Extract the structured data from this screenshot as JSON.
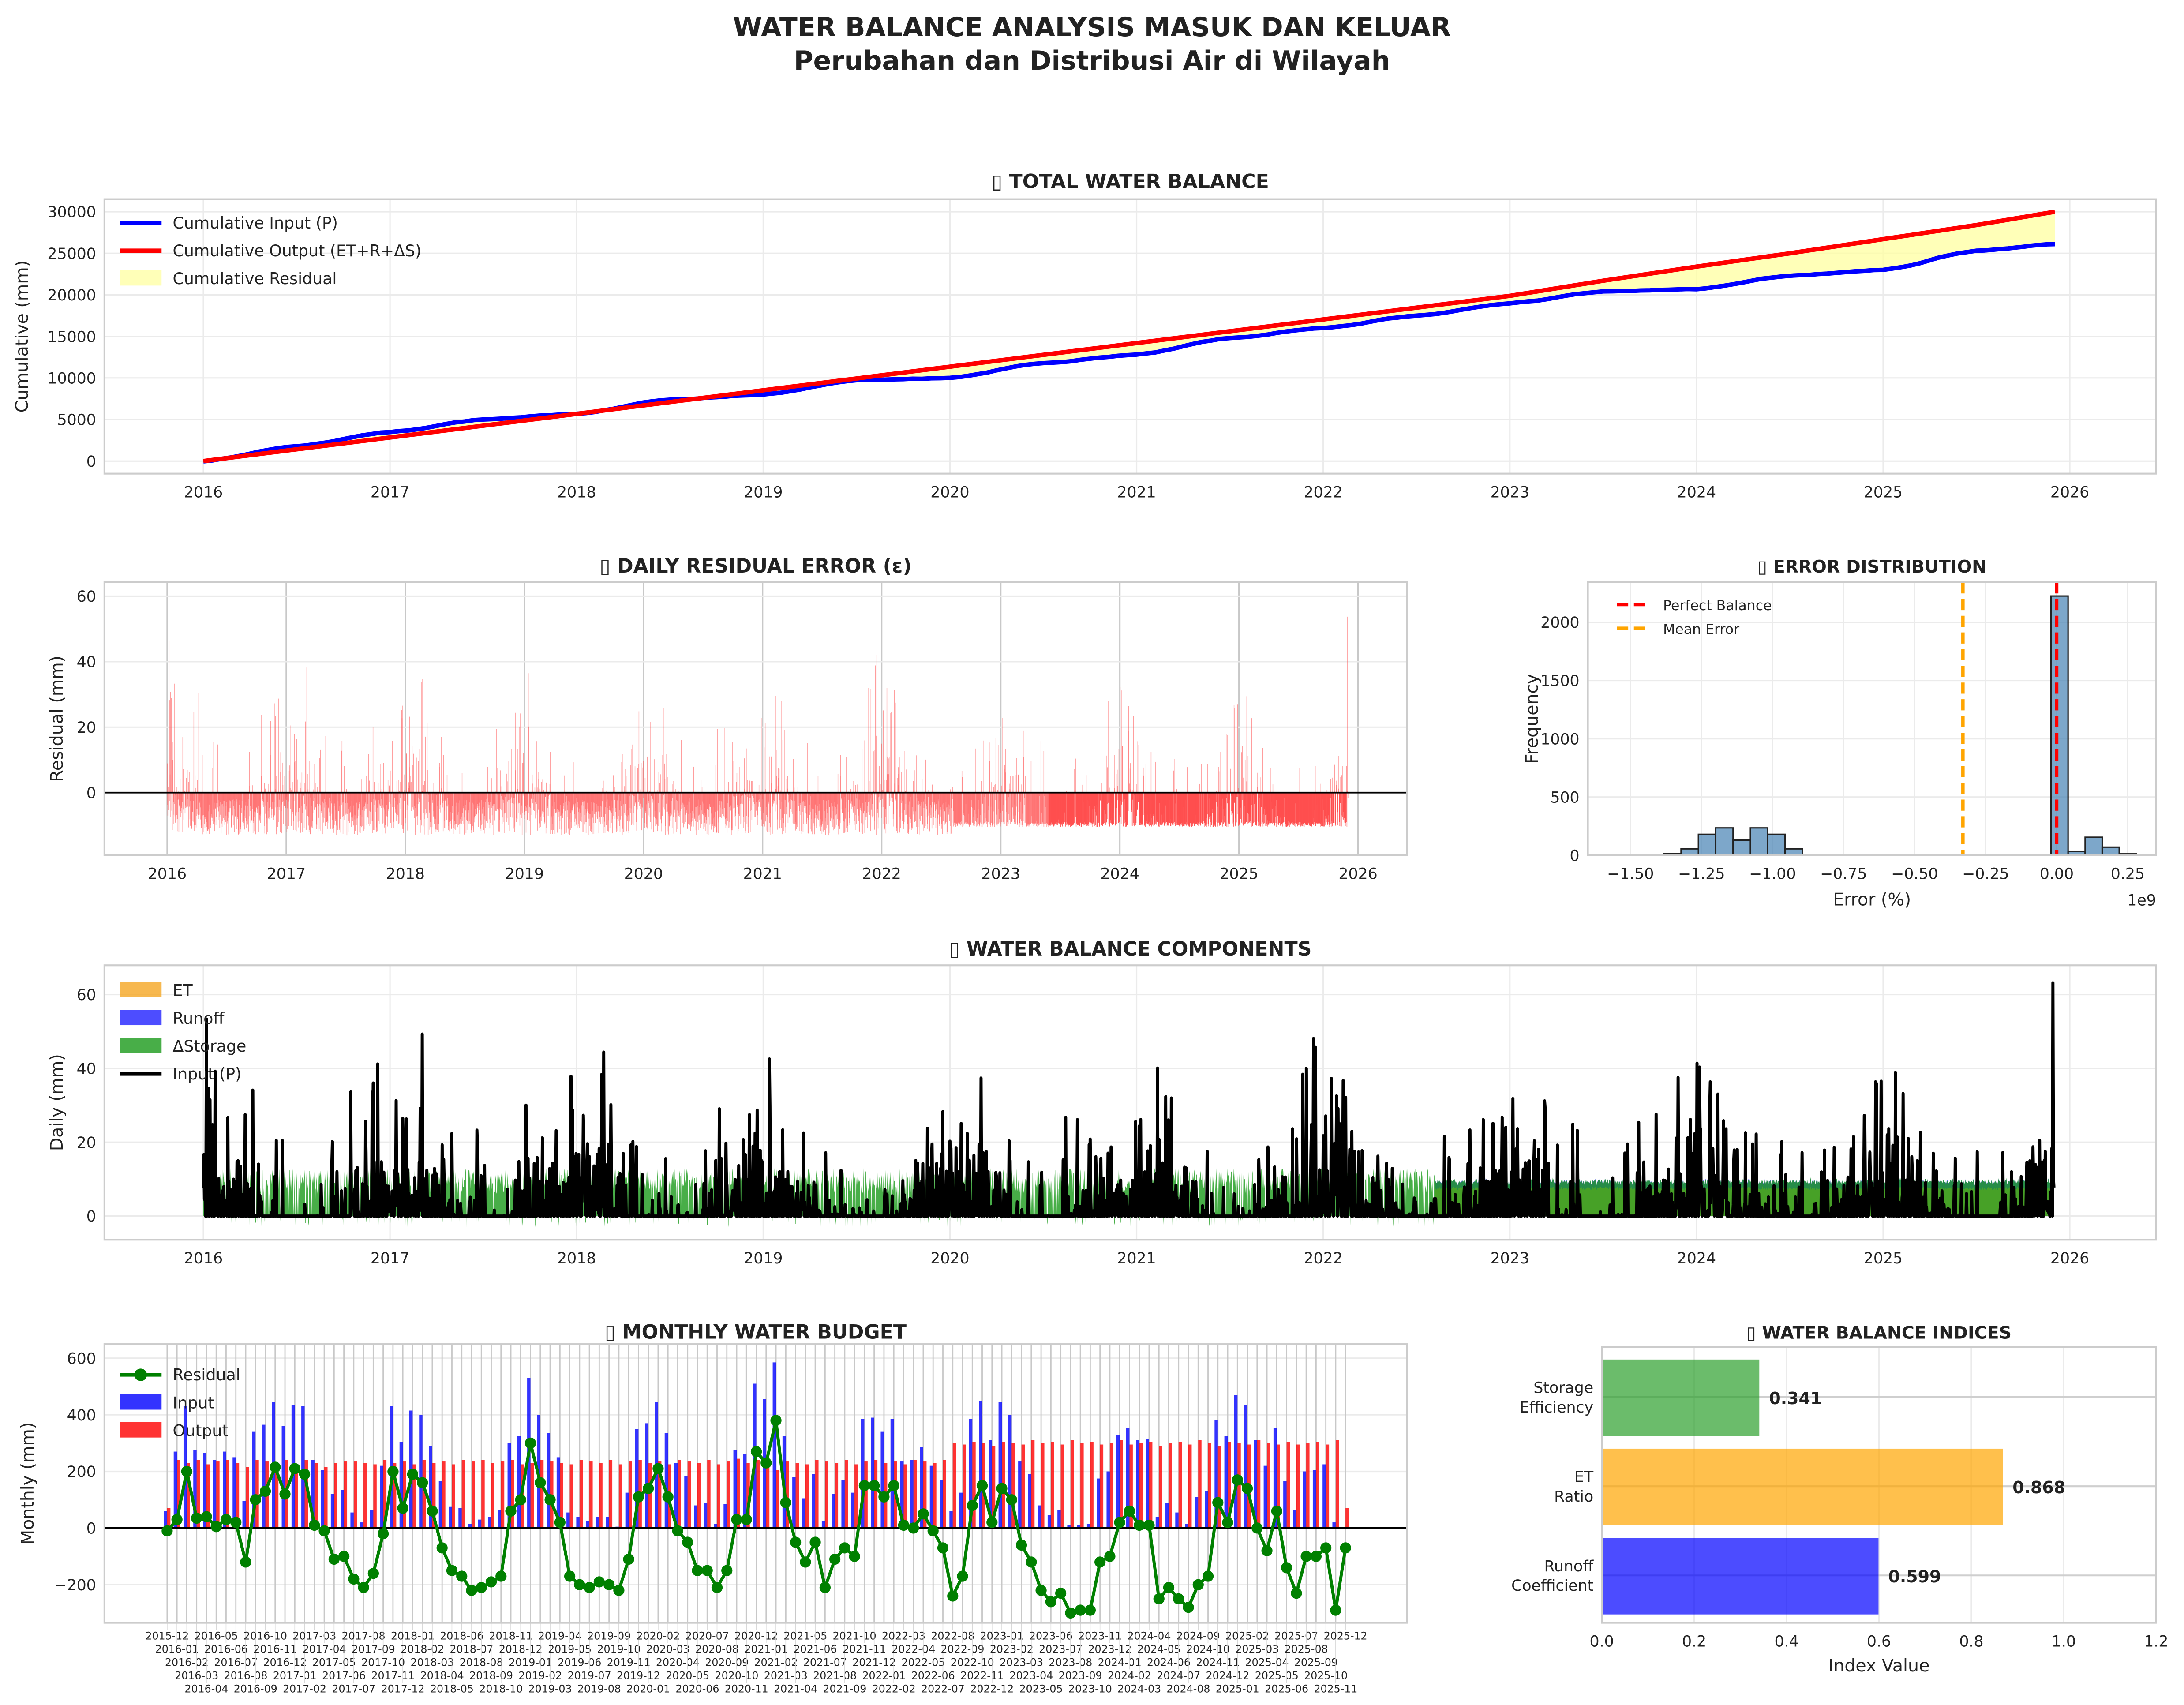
{
  "title": {
    "line1": "WATER BALANCE ANALYSIS MASUK DAN KELUAR",
    "line2": "Perubahan dan Distribusi Air di Wilayah"
  },
  "colors": {
    "input": "#0000ff",
    "output": "#ff0000",
    "residual_fill": "#ffffa0",
    "residual_bars": "#ff4d4d",
    "hist": "#4682b4",
    "et": "#f5a623",
    "runoff": "#2020ff",
    "storage": "#1a9a1a",
    "residual_line": "#008000"
  },
  "chart_data": [
    {
      "id": "total",
      "type": "line",
      "title": "TOTAL WATER BALANCE",
      "title_icon": "missing-glyph-icon",
      "ylabel": "Cumulative (mm)",
      "xlim": [
        2015.48,
        2026.47
      ],
      "ylim": [
        -1500,
        31500
      ],
      "xticks": [
        "2016",
        "2017",
        "2018",
        "2019",
        "2020",
        "2021",
        "2022",
        "2023",
        "2024",
        "2025",
        "2026"
      ],
      "yticks": [
        "0",
        "5000",
        "10000",
        "15000",
        "20000",
        "25000",
        "30000"
      ],
      "grid": true,
      "legend": "top-left",
      "legend_labels": [
        "Cumulative Input (P)",
        "Cumulative Output (ET+R+ΔS)",
        "Cumulative Residual"
      ],
      "x": [
        2016.0,
        2016.5,
        2017.0,
        2017.5,
        2018.0,
        2018.5,
        2019.0,
        2019.5,
        2020.0,
        2020.5,
        2021.0,
        2021.5,
        2022.0,
        2022.5,
        2023.0,
        2023.5,
        2024.0,
        2024.5,
        2025.0,
        2025.5,
        2025.92
      ],
      "series": [
        {
          "name": "Cumulative Input (P)",
          "values": [
            0,
            1800,
            3500,
            5000,
            5700,
            7400,
            8000,
            9700,
            10000,
            11800,
            12800,
            14800,
            16000,
            17500,
            19000,
            20400,
            20700,
            22300,
            23000,
            25300,
            26100
          ]
        },
        {
          "name": "Cumulative Output (ET+R+ΔS)",
          "values": [
            0,
            1420,
            2840,
            4260,
            5680,
            7100,
            8520,
            9940,
            11360,
            12780,
            14200,
            15620,
            17040,
            18460,
            19880,
            21700,
            23400,
            25000,
            26700,
            28400,
            30000
          ]
        }
      ]
    },
    {
      "id": "daily_residual",
      "type": "bar",
      "title": "DAILY RESIDUAL ERROR (ε)",
      "title_icon": "missing-glyph-icon",
      "ylabel": "Residual (mm)",
      "xlim": [
        2015.47,
        2026.42
      ],
      "ylim": [
        -19.1,
        64.3
      ],
      "xticks": [
        "2016",
        "2017",
        "2018",
        "2019",
        "2020",
        "2021",
        "2022",
        "2023",
        "2024",
        "2025",
        "2026"
      ],
      "yticks": [
        "0",
        "20",
        "40",
        "60"
      ],
      "x_range": [
        "2016-01-01",
        "2025-12-01"
      ],
      "grid": true
    },
    {
      "id": "error_distribution",
      "type": "bar",
      "title": "ERROR DISTRIBUTION",
      "title_icon": "missing-glyph-icon",
      "xlabel": "Error (%)",
      "ylabel": "Frequency",
      "x_offset_label": "1e9",
      "xlim": [
        -1.65,
        0.35
      ],
      "ylim": [
        0,
        2343
      ],
      "xticks": [
        "−1.50",
        "−1.25",
        "−1.00",
        "−0.75",
        "−0.50",
        "−0.25",
        "0.00",
        "0.25"
      ],
      "xtick_values": [
        -1.5,
        -1.25,
        -1.0,
        -0.75,
        -0.5,
        -0.25,
        0.0,
        0.25
      ],
      "yticks": [
        "0",
        "500",
        "1000",
        "1500",
        "2000"
      ],
      "legend": "top-left",
      "legend_labels": [
        "Perfect Balance",
        "Mean Error"
      ],
      "perfect_balance": 0.0,
      "mean_error": -0.33,
      "bins": [
        {
          "x0": -1.505,
          "x1": -1.444,
          "count": 3
        },
        {
          "x0": -1.383,
          "x1": -1.322,
          "count": 15
        },
        {
          "x0": -1.322,
          "x1": -1.261,
          "count": 55
        },
        {
          "x0": -1.261,
          "x1": -1.2,
          "count": 180
        },
        {
          "x0": -1.2,
          "x1": -1.139,
          "count": 235
        },
        {
          "x0": -1.139,
          "x1": -1.078,
          "count": 130
        },
        {
          "x0": -1.078,
          "x1": -1.017,
          "count": 235
        },
        {
          "x0": -1.017,
          "x1": -0.956,
          "count": 180
        },
        {
          "x0": -0.956,
          "x1": -0.895,
          "count": 55
        },
        {
          "x0": -0.08,
          "x1": -0.02,
          "count": 5
        },
        {
          "x0": -0.02,
          "x1": 0.04,
          "count": 2225
        },
        {
          "x0": 0.04,
          "x1": 0.1,
          "count": 35
        },
        {
          "x0": 0.1,
          "x1": 0.16,
          "count": 155
        },
        {
          "x0": 0.16,
          "x1": 0.22,
          "count": 70
        },
        {
          "x0": 0.22,
          "x1": 0.28,
          "count": 12
        }
      ]
    },
    {
      "id": "components",
      "type": "area",
      "title": "WATER BALANCE COMPONENTS",
      "title_icon": "missing-glyph-icon",
      "ylabel": "Daily (mm)",
      "xlim": [
        2015.48,
        2026.47
      ],
      "ylim": [
        -6.4,
        67.9
      ],
      "xticks": [
        "2016",
        "2017",
        "2018",
        "2019",
        "2020",
        "2021",
        "2022",
        "2023",
        "2024",
        "2025",
        "2026"
      ],
      "yticks": [
        "0",
        "20",
        "40",
        "60"
      ],
      "legend": "top-left",
      "legend_labels": [
        "ET",
        "Runoff",
        "ΔStorage",
        "Input (P)"
      ],
      "x_range": [
        "2016-01-01",
        "2025-12-01"
      ],
      "grid": true
    },
    {
      "id": "monthly",
      "type": "bar",
      "title": "MONTHLY WATER BUDGET",
      "title_icon": "missing-glyph-icon",
      "ylabel": "Monthly (mm)",
      "ylim": [
        -334,
        649
      ],
      "yticks": [
        "−200",
        "0",
        "200",
        "400",
        "600"
      ],
      "ytick_values": [
        -200,
        0,
        200,
        400,
        600
      ],
      "legend": "top-left",
      "legend_labels": [
        "Residual",
        "Input",
        "Output"
      ],
      "categories": [
        "2015-12",
        "2016-01",
        "2016-02",
        "2016-03",
        "2016-04",
        "2016-05",
        "2016-06",
        "2016-07",
        "2016-08",
        "2016-09",
        "2016-10",
        "2016-11",
        "2016-12",
        "2017-01",
        "2017-02",
        "2017-03",
        "2017-04",
        "2017-05",
        "2017-06",
        "2017-07",
        "2017-08",
        "2017-09",
        "2017-10",
        "2017-11",
        "2017-12",
        "2018-01",
        "2018-02",
        "2018-03",
        "2018-04",
        "2018-05",
        "2018-06",
        "2018-07",
        "2018-08",
        "2018-09",
        "2018-10",
        "2018-11",
        "2018-12",
        "2019-01",
        "2019-02",
        "2019-03",
        "2019-04",
        "2019-05",
        "2019-06",
        "2019-07",
        "2019-08",
        "2019-09",
        "2019-10",
        "2019-11",
        "2019-12",
        "2020-01",
        "2020-02",
        "2020-03",
        "2020-04",
        "2020-05",
        "2020-06",
        "2020-07",
        "2020-08",
        "2020-09",
        "2020-10",
        "2020-11",
        "2020-12",
        "2021-01",
        "2021-02",
        "2021-03",
        "2021-04",
        "2021-05",
        "2021-06",
        "2021-07",
        "2021-08",
        "2021-09",
        "2021-10",
        "2021-11",
        "2021-12",
        "2022-01",
        "2022-02",
        "2022-03",
        "2022-04",
        "2022-05",
        "2022-06",
        "2022-07",
        "2022-08",
        "2022-09",
        "2022-10",
        "2022-11",
        "2022-12",
        "2023-01",
        "2023-02",
        "2023-03",
        "2023-04",
        "2023-05",
        "2023-06",
        "2023-07",
        "2023-08",
        "2023-09",
        "2023-10",
        "2023-11",
        "2023-12",
        "2024-01",
        "2024-02",
        "2024-03",
        "2024-04",
        "2024-05",
        "2024-06",
        "2024-07",
        "2024-08",
        "2024-09",
        "2024-10",
        "2024-11",
        "2024-12",
        "2025-01",
        "2025-02",
        "2025-03",
        "2025-04",
        "2025-05",
        "2025-06",
        "2025-07",
        "2025-08",
        "2025-09",
        "2025-10",
        "2025-11",
        "2025-12"
      ],
      "series": [
        {
          "name": "Input",
          "values": [
            60,
            270,
            430,
            275,
            265,
            240,
            270,
            250,
            95,
            340,
            365,
            445,
            360,
            435,
            430,
            240,
            205,
            120,
            135,
            55,
            20,
            65,
            220,
            430,
            305,
            415,
            400,
            290,
            165,
            75,
            70,
            15,
            30,
            40,
            65,
            300,
            325,
            530,
            400,
            335,
            250,
            55,
            40,
            25,
            40,
            40,
            5,
            125,
            350,
            370,
            445,
            335,
            230,
            185,
            80,
            90,
            15,
            85,
            275,
            260,
            510,
            455,
            585,
            325,
            180,
            105,
            190,
            25,
            120,
            170,
            125,
            385,
            390,
            340,
            385,
            235,
            240,
            285,
            220,
            170,
            60,
            125,
            385,
            450,
            310,
            445,
            400,
            235,
            190,
            80,
            45,
            65,
            10,
            10,
            15,
            175,
            200,
            330,
            355,
            310,
            315,
            40,
            90,
            55,
            15,
            110,
            130,
            380,
            325,
            470,
            435,
            310,
            220,
            355,
            165,
            65,
            200,
            205,
            225,
            20,
            0
          ]
        },
        {
          "name": "Output",
          "values": [
            70,
            240,
            230,
            240,
            225,
            235,
            240,
            230,
            215,
            240,
            235,
            230,
            240,
            225,
            240,
            230,
            215,
            230,
            235,
            235,
            230,
            225,
            240,
            230,
            235,
            225,
            240,
            230,
            235,
            225,
            240,
            235,
            240,
            230,
            235,
            240,
            225,
            230,
            240,
            235,
            230,
            225,
            240,
            235,
            230,
            240,
            225,
            235,
            240,
            230,
            235,
            225,
            240,
            235,
            230,
            240,
            225,
            235,
            245,
            230,
            240,
            225,
            205,
            235,
            230,
            225,
            240,
            235,
            230,
            240,
            225,
            235,
            240,
            230,
            235,
            225,
            240,
            235,
            230,
            240,
            300,
            295,
            305,
            300,
            290,
            305,
            300,
            295,
            310,
            300,
            305,
            295,
            310,
            300,
            305,
            295,
            300,
            310,
            295,
            300,
            305,
            290,
            300,
            305,
            295,
            310,
            300,
            290,
            305,
            300,
            295,
            310,
            300,
            295,
            305,
            295,
            300,
            305,
            295,
            310,
            70
          ]
        },
        {
          "name": "Residual",
          "values": [
            -10,
            30,
            200,
            35,
            40,
            5,
            30,
            20,
            -120,
            100,
            130,
            215,
            120,
            210,
            190,
            10,
            -10,
            -110,
            -100,
            -180,
            -210,
            -160,
            -20,
            200,
            70,
            190,
            160,
            60,
            -70,
            -150,
            -170,
            -220,
            -210,
            -190,
            -170,
            60,
            100,
            300,
            160,
            100,
            20,
            -170,
            -200,
            -210,
            -190,
            -200,
            -220,
            -110,
            110,
            140,
            210,
            110,
            -10,
            -50,
            -150,
            -150,
            -210,
            -150,
            30,
            30,
            270,
            230,
            380,
            90,
            -50,
            -120,
            -50,
            -210,
            -110,
            -70,
            -100,
            150,
            150,
            110,
            150,
            10,
            0,
            50,
            -10,
            -70,
            -240,
            -170,
            80,
            150,
            20,
            140,
            100,
            -60,
            -120,
            -220,
            -260,
            -230,
            -300,
            -290,
            -290,
            -120,
            -100,
            20,
            60,
            10,
            10,
            -250,
            -210,
            -250,
            -280,
            -200,
            -170,
            90,
            20,
            170,
            140,
            0,
            -80,
            60,
            -140,
            -230,
            -100,
            -100,
            -70,
            -290,
            -70
          ]
        }
      ]
    },
    {
      "id": "indices",
      "type": "bar",
      "orientation": "horizontal",
      "title": "WATER BALANCE INDICES",
      "title_icon": "missing-glyph-icon",
      "xlabel": "Index Value",
      "xlim": [
        0,
        1.2
      ],
      "xticks": [
        "0.0",
        "0.2",
        "0.4",
        "0.6",
        "0.8",
        "1.0",
        "1.2"
      ],
      "categories": [
        [
          "Storage",
          "Efficiency"
        ],
        [
          "ET",
          "Ratio"
        ],
        [
          "Runoff",
          "Coefficient"
        ]
      ],
      "values": [
        0.341,
        0.868,
        0.599
      ],
      "value_labels": [
        "0.341",
        "0.868",
        "0.599"
      ],
      "bar_colors": [
        "#2ca02c",
        "#ffa500",
        "#0000ff"
      ]
    }
  ]
}
